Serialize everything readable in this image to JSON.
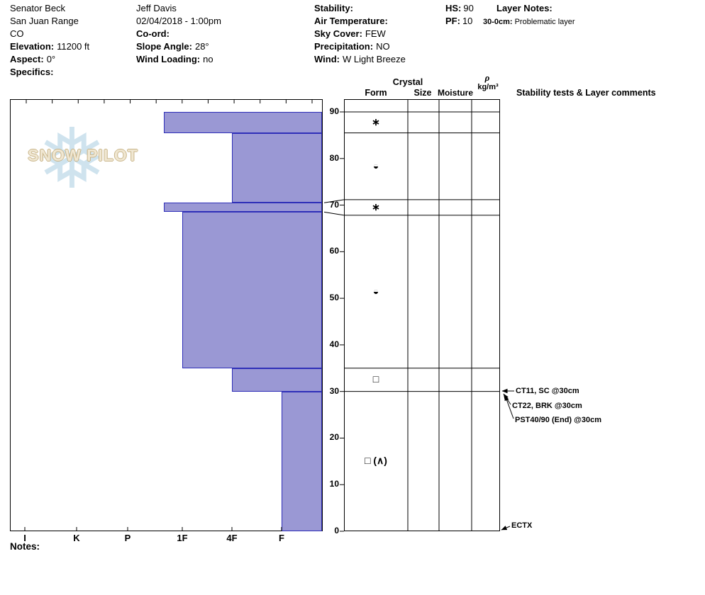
{
  "colors": {
    "bar_fill": "#9a98d4",
    "bar_line": "#2e2eb8",
    "grid_line": "#000000",
    "logo_flake": "#cfe3ee",
    "logo_text": "#d9c69c"
  },
  "header": {
    "site": {
      "name": "Senator Beck",
      "range": "San Juan Range",
      "state": "CO",
      "elevation_label": "Elevation:",
      "elevation_value": "11200 ft",
      "aspect_label": "Aspect:",
      "aspect_value": "0°",
      "specifics_label": "Specifics:"
    },
    "observer": {
      "name": "Jeff Davis",
      "datetime": "02/04/2018 - 1:00pm",
      "coord_label": "Co-ord:",
      "slope_angle_label": "Slope Angle:",
      "slope_angle_value": "28°",
      "wind_loading_label": "Wind Loading:",
      "wind_loading_value": "no"
    },
    "conditions": {
      "stability_label": "Stability:",
      "air_temp_label": "Air Temperature:",
      "sky_cover_label": "Sky Cover:",
      "sky_cover_value": "FEW",
      "precipitation_label": "Precipitation:",
      "precipitation_value": "NO",
      "wind_label": "Wind:",
      "wind_value": "W Light Breeze"
    },
    "totals": {
      "hs_label": "HS:",
      "hs_value": "90",
      "pf_label": "PF:",
      "pf_value": "10"
    },
    "layer_notes": {
      "title": "Layer Notes:",
      "note_range": "30-0cm:",
      "note_text": "Problematic layer"
    }
  },
  "logo": {
    "flake_glyph": "❅",
    "text": "SNOW PILOT"
  },
  "chart_data": {
    "type": "bar",
    "subtype": "snow-profile-hardness",
    "depth_unit": "cm",
    "depth_axis": {
      "min": 0,
      "max": 90,
      "ticks": [
        90,
        80,
        70,
        60,
        50,
        40,
        30,
        20,
        10,
        0
      ]
    },
    "hardness_axis": {
      "categories": [
        "I",
        "K",
        "P",
        "1F",
        "4F",
        "F"
      ]
    },
    "snow_height": 90,
    "layers": [
      {
        "top_cm": 90,
        "bottom_cm": 85.5,
        "hardness": "1F+",
        "grain_form_symbol": "∗"
      },
      {
        "top_cm": 85.5,
        "bottom_cm": 70.5,
        "hardness": "4F",
        "grain_form_symbol": "◒"
      },
      {
        "top_cm": 70.5,
        "bottom_cm": 68.5,
        "hardness": "1F+",
        "grain_form_symbol": "∗"
      },
      {
        "top_cm": 68.5,
        "bottom_cm": 35,
        "hardness": "1F",
        "grain_form_symbol": "◒"
      },
      {
        "top_cm": 35,
        "bottom_cm": 30,
        "hardness": "4F",
        "grain_form_symbol": "□"
      },
      {
        "top_cm": 30,
        "bottom_cm": 0,
        "hardness": "F",
        "grain_form_symbol": "□ (∧)"
      }
    ],
    "table_columns": {
      "crystal": "Crystal",
      "form": "Form",
      "size": "Size",
      "moisture": "Moisture",
      "density_symbol": "ρ",
      "density_unit": "kg/m³",
      "stability_header": "Stability tests & Layer comments"
    },
    "stability_tests": [
      {
        "label": "CT11, SC @30cm",
        "depth_cm": 30
      },
      {
        "label": "CT22, BRK @30cm",
        "depth_cm": 30
      },
      {
        "label": "PST40/90 (End) @30cm",
        "depth_cm": 30
      },
      {
        "label": "ECTX",
        "depth_cm": 0
      }
    ]
  },
  "footer": {
    "notes_label": "Notes:"
  }
}
